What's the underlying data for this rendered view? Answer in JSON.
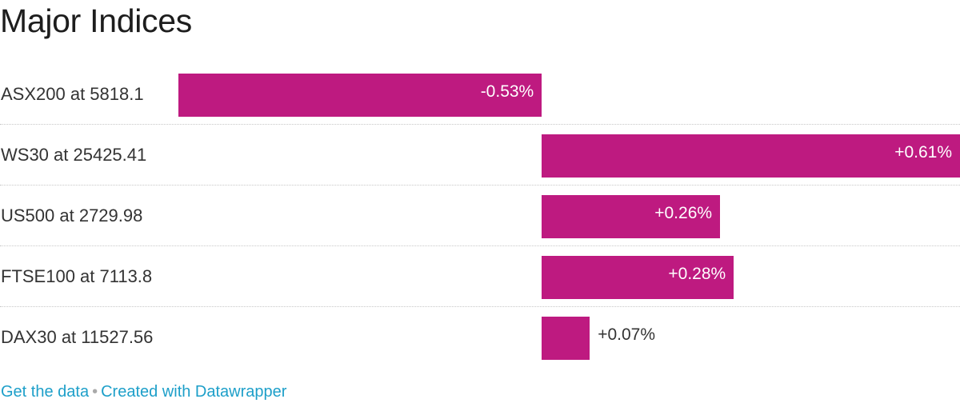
{
  "header": {
    "title": "Major Indices"
  },
  "colors": {
    "bar": "#be1a80",
    "label_inside": "#ffffff",
    "label_outside": "#333333"
  },
  "chart_data": {
    "type": "bar",
    "orientation": "horizontal",
    "title": "Major Indices",
    "categories": [
      "ASX200 at 5818.1",
      "WS30 at 25425.41",
      "US500 at 2729.98",
      "FTSE100 at 7113.8",
      "DAX30 at 11527.56"
    ],
    "values": [
      -0.53,
      0.61,
      0.26,
      0.28,
      0.07
    ],
    "value_labels": [
      "-0.53%",
      "+0.61%",
      "+0.26%",
      "+0.28%",
      "+0.07%"
    ],
    "xlim": [
      -0.53,
      0.61
    ],
    "grid": false,
    "legend": "none"
  },
  "footer": {
    "get_data": "Get the data",
    "separator": "•",
    "created_with": "Created with Datawrapper"
  }
}
